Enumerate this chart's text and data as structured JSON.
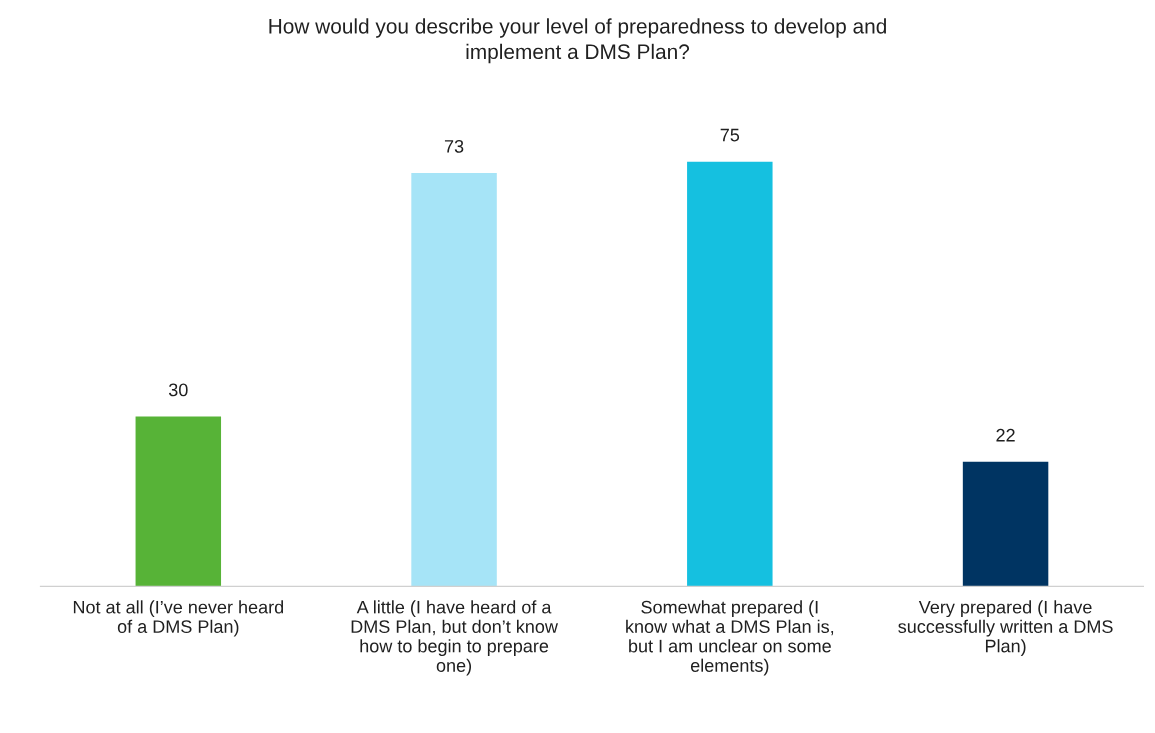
{
  "chart_data": {
    "type": "bar",
    "title": "How would you describe your level of preparedness to develop and\nimplement a DMS Plan?",
    "categories": [
      "Not at all (I’ve never heard\nof a DMS Plan)",
      "A little (I have heard of a\nDMS Plan, but don’t know\nhow to begin to prepare\none)",
      "Somewhat prepared (I\nknow what a DMS Plan is,\nbut I am unclear on some\nelements)",
      "Very prepared (I have\nsuccessfully written a DMS\nPlan)"
    ],
    "values": [
      30,
      73,
      75,
      22
    ],
    "colors": [
      "#57b337",
      "#a6e4f7",
      "#15c0e0",
      "#003462"
    ],
    "data_labels": true,
    "grid": false,
    "legend": false
  }
}
